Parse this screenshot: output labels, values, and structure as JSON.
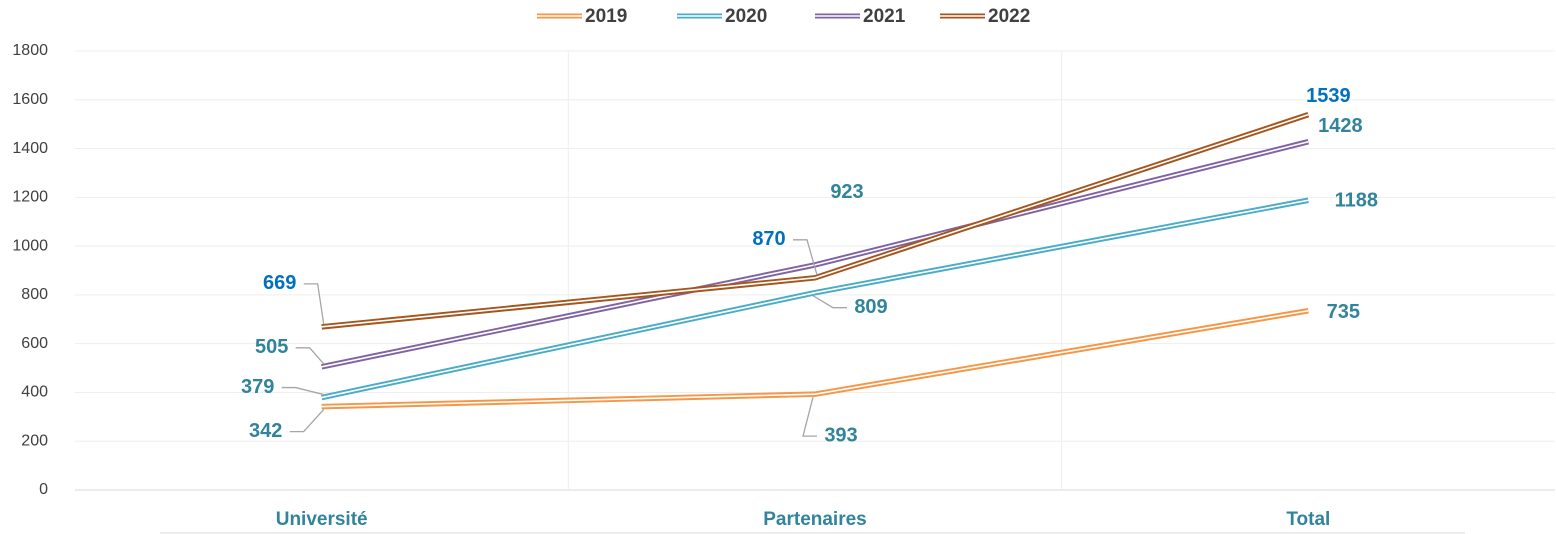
{
  "chart_data": {
    "type": "line",
    "categories": [
      "Université",
      "Partenaires",
      "Total"
    ],
    "series": [
      {
        "name": "2019",
        "color": "#f79646",
        "values": [
          342,
          393,
          735
        ],
        "label_colors": [
          "#31849b",
          "#31849b",
          "#31849b"
        ]
      },
      {
        "name": "2020",
        "color": "#4bacc6",
        "values": [
          379,
          809,
          1188
        ],
        "label_colors": [
          "#31849b",
          "#31849b",
          "#31849b"
        ]
      },
      {
        "name": "2021",
        "color": "#8064a2",
        "values": [
          505,
          923,
          1428
        ],
        "label_colors": [
          "#31849b",
          "#31849b",
          "#31849b"
        ]
      },
      {
        "name": "2022",
        "color": "#a5561e",
        "values": [
          669,
          870,
          1539
        ],
        "label_colors": [
          "#0070c0",
          "#0070c0",
          "#0070c0"
        ]
      }
    ],
    "ylim": [
      0,
      1800
    ],
    "yticks": [
      0,
      200,
      400,
      600,
      800,
      1000,
      1200,
      1400,
      1600,
      1800
    ],
    "grid": true,
    "legend": "top"
  }
}
